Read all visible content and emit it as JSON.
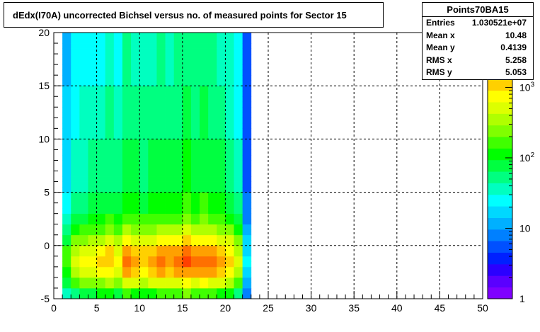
{
  "chart_data": {
    "type": "heatmap",
    "title": "dEdx(I70A) uncorrected Bichsel versus no. of measured points for Sector 15",
    "xlim": [
      0,
      50
    ],
    "ylim": [
      -5,
      20
    ],
    "x_ticks": [
      0,
      5,
      10,
      15,
      20,
      25,
      30,
      35,
      40,
      45,
      50
    ],
    "y_ticks": [
      -5,
      0,
      5,
      10,
      15,
      20
    ],
    "x_tick_labels": [
      "0",
      "5",
      "10",
      "15",
      "20",
      "25",
      "30",
      "35",
      "40",
      "45",
      "50"
    ],
    "y_tick_labels": [
      "-5",
      "0",
      "5",
      "10",
      "15",
      "20"
    ],
    "grid": true,
    "x_bin_width": 1,
    "x_bin_starts": [
      1,
      2,
      3,
      4,
      5,
      6,
      7,
      8,
      9,
      10,
      11,
      12,
      13,
      14,
      15,
      16,
      17,
      18,
      19,
      20,
      21,
      22
    ],
    "column_weights": [
      0.6,
      0.72,
      0.76,
      0.78,
      0.8,
      0.84,
      0.78,
      0.9,
      0.86,
      0.84,
      0.86,
      0.9,
      0.88,
      0.9,
      0.94,
      0.9,
      0.92,
      0.9,
      0.86,
      0.82,
      0.72,
      0.35
    ],
    "y_bands": [
      {
        "y_from": -5,
        "y_to": -4,
        "level": 0.66
      },
      {
        "y_from": -4,
        "y_to": -3,
        "level": 0.82
      },
      {
        "y_from": -3,
        "y_to": -2,
        "level": 0.94
      },
      {
        "y_from": -2,
        "y_to": -1,
        "level": 1.0
      },
      {
        "y_from": -1,
        "y_to": 0,
        "level": 0.96
      },
      {
        "y_from": 0,
        "y_to": 1,
        "level": 0.86
      },
      {
        "y_from": 1,
        "y_to": 2,
        "level": 0.76
      },
      {
        "y_from": 2,
        "y_to": 3,
        "level": 0.68
      },
      {
        "y_from": 3,
        "y_to": 5,
        "level": 0.62
      },
      {
        "y_from": 5,
        "y_to": 10,
        "level": 0.56
      },
      {
        "y_from": 10,
        "y_to": 15,
        "level": 0.52
      },
      {
        "y_from": 15,
        "y_to": 20,
        "level": 0.48
      }
    ],
    "z_scale": "log",
    "z_range": [
      1,
      6000
    ],
    "z_ticks": [
      1,
      10,
      100,
      1000
    ],
    "z_tick_labels": [
      "1",
      "10",
      "10^2",
      "10^3"
    ],
    "palette": [
      "#7f00ff",
      "#5a00ff",
      "#2b00ff",
      "#0020ff",
      "#0050ff",
      "#0080ff",
      "#00b0ff",
      "#00d8ff",
      "#00ffff",
      "#00ffc0",
      "#00ff80",
      "#00ff40",
      "#00ff00",
      "#40ff00",
      "#80ff00",
      "#b0ff00",
      "#ddff00",
      "#ffff00",
      "#ffd000",
      "#ffa000",
      "#ff7000",
      "#ff4000",
      "#ff0000"
    ]
  },
  "stats": {
    "name": "Points70BA15",
    "rows": [
      {
        "key": "Entries",
        "value": "1.030521e+07"
      },
      {
        "key": "Mean x",
        "value": "10.48"
      },
      {
        "key": "Mean y",
        "value": "0.4139"
      },
      {
        "key": "RMS x",
        "value": "5.258"
      },
      {
        "key": "RMS y",
        "value": "5.053"
      }
    ]
  }
}
